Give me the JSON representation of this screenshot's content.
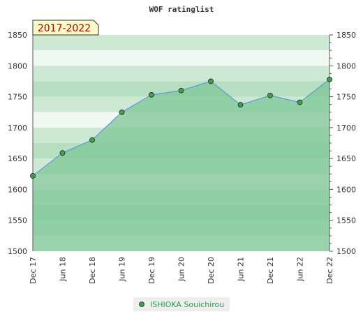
{
  "chart_data": {
    "type": "area",
    "title": "WOF ratinglist",
    "badge": "2017-2022",
    "categories": [
      "Dec 17",
      "Jun 18",
      "Dec 18",
      "Jun 19",
      "Dec 19",
      "Jun 20",
      "Dec 20",
      "Jun 21",
      "Dec 21",
      "Jun 22",
      "Dec 22"
    ],
    "series": [
      {
        "name": "ISHIOKA Souichirou",
        "values": [
          1622,
          1659,
          1680,
          1725,
          1753,
          1760,
          1775,
          1737,
          1752,
          1741,
          1778
        ]
      }
    ],
    "ylim": [
      1500,
      1850
    ],
    "yticks": [
      1500,
      1550,
      1600,
      1650,
      1700,
      1750,
      1800,
      1850
    ],
    "grid": true,
    "legend_position": "bottom",
    "colors": {
      "line": "#5b9bd5",
      "marker": "#3ca34a",
      "area": "#7cc594",
      "band_dark": "#b6dfc1",
      "band_mid": "#cde9d4",
      "band_light": "#f0f8f2"
    }
  }
}
